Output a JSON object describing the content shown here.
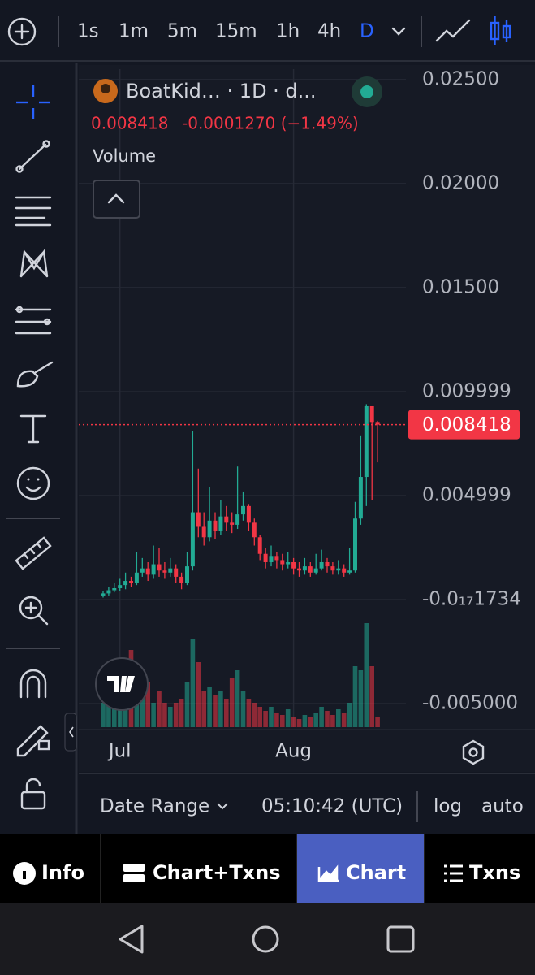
{
  "toolbar": {
    "intervals": [
      "1s",
      "1m",
      "5m",
      "15m",
      "1h",
      "4h",
      "D"
    ],
    "active": 6
  },
  "legend": {
    "title": "BoatKid… · 1D · d...",
    "change": "-0.0001270 (−1.49%)",
    "indicator": "Volume"
  },
  "chart_data": {
    "type": "candlestick",
    "categories": [
      null,
      null,
      null,
      "Jul",
      null,
      null,
      null,
      null,
      null,
      null,
      null,
      null,
      null,
      null,
      null,
      null,
      null,
      null,
      null,
      null,
      null,
      null,
      null,
      null,
      null,
      null,
      null,
      null,
      null,
      null,
      null,
      null,
      null,
      null,
      "Aug",
      null,
      null,
      null,
      null,
      null,
      null,
      null,
      null,
      null,
      null,
      null,
      null,
      null,
      null,
      null
    ],
    "open": [
      0.0002,
      0.0003,
      0.00045,
      0.00055,
      0.0007,
      0.0009,
      0.0008,
      0.0013,
      0.0015,
      0.0012,
      0.0017,
      0.0014,
      0.0013,
      0.0015,
      0.0011,
      0.0008,
      0.0016,
      0.0042,
      0.0035,
      0.003,
      0.0038,
      0.0033,
      0.004,
      0.0037,
      0.0036,
      0.0041,
      0.0045,
      0.0037,
      0.003,
      0.0022,
      0.0018,
      0.0021,
      0.0019,
      0.0017,
      0.0018,
      0.0015,
      0.0014,
      0.0016,
      0.0013,
      0.0015,
      0.0018,
      0.0016,
      0.0014,
      0.0015,
      0.0013,
      0.0014,
      0.0039,
      0.0059,
      0.0093,
      0.008545
    ],
    "high": [
      0.0004,
      0.0006,
      0.0008,
      0.001,
      0.0013,
      0.0011,
      0.0023,
      0.002,
      0.0018,
      0.0026,
      0.0025,
      0.0018,
      0.002,
      0.0017,
      0.0013,
      0.0023,
      0.0081,
      0.0063,
      0.0042,
      0.0054,
      0.0042,
      0.0048,
      0.0045,
      0.0042,
      0.0064,
      0.0052,
      0.0046,
      0.0039,
      0.0031,
      0.0025,
      0.0026,
      0.0023,
      0.0022,
      0.0023,
      0.002,
      0.0018,
      0.002,
      0.0018,
      0.0022,
      0.0024,
      0.002,
      0.0018,
      0.0019,
      0.0017,
      0.0025,
      0.0047,
      0.0079,
      0.0094,
      0.0093,
      0.0086
    ],
    "low": [
      0.0001,
      0.0002,
      0.00035,
      0.0004,
      0.0005,
      0.0006,
      0.0007,
      0.0011,
      0.0009,
      0.001,
      0.0011,
      0.001,
      0.0011,
      0.0008,
      0.0005,
      0.0007,
      0.0014,
      0.003,
      0.0026,
      0.0028,
      0.0029,
      0.0031,
      0.0033,
      0.0032,
      0.0034,
      0.0038,
      0.0033,
      0.0026,
      0.0019,
      0.0015,
      0.0016,
      0.0015,
      0.0014,
      0.0015,
      0.0012,
      0.0011,
      0.0012,
      0.0011,
      0.0012,
      0.0014,
      0.0013,
      0.0012,
      0.0012,
      0.0011,
      0.0012,
      0.0013,
      0.0036,
      0.0045,
      0.0048,
      0.0066
    ],
    "close": [
      0.0003,
      0.00045,
      0.00055,
      0.0007,
      0.0009,
      0.0008,
      0.0013,
      0.0015,
      0.0012,
      0.0017,
      0.0014,
      0.0013,
      0.0015,
      0.0011,
      0.0008,
      0.0016,
      0.0042,
      0.0035,
      0.003,
      0.0038,
      0.0033,
      0.004,
      0.0037,
      0.0036,
      0.0041,
      0.0045,
      0.0037,
      0.003,
      0.0022,
      0.0018,
      0.0021,
      0.0019,
      0.0017,
      0.0018,
      0.0015,
      0.0014,
      0.0016,
      0.0013,
      0.0015,
      0.0018,
      0.0016,
      0.0014,
      0.0015,
      0.0013,
      0.0014,
      0.0039,
      0.0059,
      0.0093,
      0.008545,
      0.008418
    ],
    "volume": [
      30,
      35,
      25,
      40,
      45,
      95,
      35,
      40,
      55,
      30,
      45,
      30,
      25,
      30,
      35,
      55,
      108,
      80,
      45,
      50,
      40,
      45,
      35,
      60,
      70,
      45,
      35,
      30,
      25,
      20,
      25,
      18,
      15,
      22,
      12,
      10,
      15,
      12,
      18,
      25,
      20,
      15,
      22,
      18,
      30,
      75,
      70,
      128,
      75,
      12
    ],
    "up_color": "#22ab94",
    "down_color": "#f23645",
    "ylim": [
      -0.00613,
      0.02551
    ],
    "yticks": [
      {
        "value": 0.025,
        "label": "0.02500"
      },
      {
        "value": 0.02,
        "label": "0.02000"
      },
      {
        "value": 0.015,
        "label": "0.01500"
      },
      0.009999,
      0.004999,
      {
        "value": -1.734e-17,
        "label": "-0.0₁₇1734"
      },
      {
        "value": -0.005,
        "label": "-0.005000"
      }
    ],
    "grid": true
  },
  "footer": {
    "date_range": "Date Range",
    "time": "05:10:42 (UTC)",
    "log": "log",
    "auto": "auto"
  },
  "tabs": {
    "labels": [
      "Info",
      "Chart+Txns",
      "Chart",
      "Txns"
    ],
    "active": 2
  }
}
